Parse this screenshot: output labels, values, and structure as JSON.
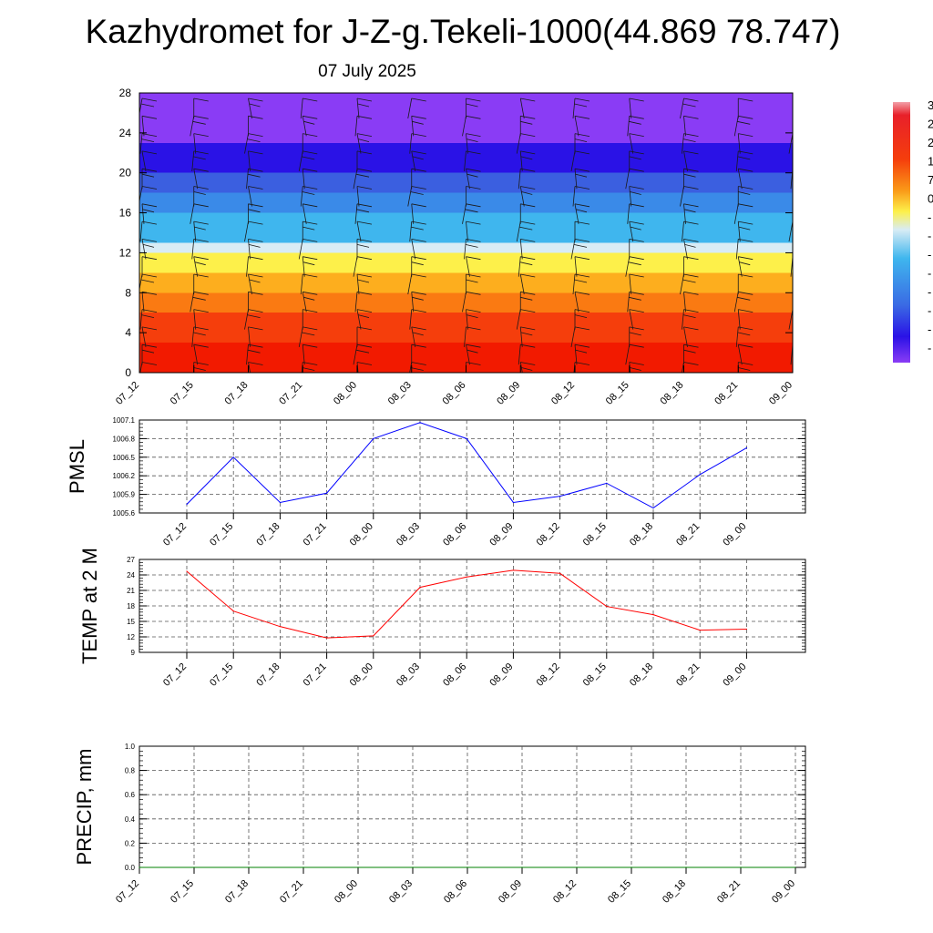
{
  "page": {
    "title": "Kazhydromet for J-Z-g.Tekeli-1000(44.869 78.747)",
    "subtitle": "07 July 2025"
  },
  "colorbar": {
    "labels": [
      "3",
      "2",
      "2",
      "1",
      "7",
      "0",
      "-",
      "-",
      "-",
      "-",
      "-",
      "-",
      "-",
      "-"
    ]
  },
  "chart_data": [
    {
      "type": "heatmap",
      "name": "cross-section",
      "categories": [
        "07_12",
        "07_15",
        "07_18",
        "07_21",
        "08_00",
        "08_03",
        "08_06",
        "08_09",
        "08_12",
        "08_15",
        "08_18",
        "08_21",
        "09_00"
      ],
      "y_ticks": [
        0,
        4,
        8,
        12,
        16,
        20,
        24,
        28
      ],
      "ylim": [
        0,
        28
      ],
      "color_bands": [
        {
          "from": 0,
          "to": 3,
          "color": "#f21a00"
        },
        {
          "from": 3,
          "to": 6,
          "color": "#f53e0c"
        },
        {
          "from": 6,
          "to": 8,
          "color": "#fa7a12"
        },
        {
          "from": 8,
          "to": 10,
          "color": "#fdae1e"
        },
        {
          "from": 10,
          "to": 12,
          "color": "#fdf04a"
        },
        {
          "from": 12,
          "to": 13,
          "color": "#d8ecf5"
        },
        {
          "from": 13,
          "to": 16,
          "color": "#3fb6ee"
        },
        {
          "from": 16,
          "to": 18,
          "color": "#3a8ae8"
        },
        {
          "from": 18,
          "to": 20,
          "color": "#3b5fe0"
        },
        {
          "from": 20,
          "to": 23,
          "color": "#2a12e6"
        },
        {
          "from": 23,
          "to": 28,
          "color": "#8a3cf5"
        }
      ],
      "wind_barbs": "present"
    },
    {
      "type": "line",
      "name": "pmsl",
      "ylabel": "PMSL",
      "categories": [
        "07_12",
        "07_15",
        "07_18",
        "07_21",
        "08_00",
        "08_03",
        "08_06",
        "08_09",
        "08_12",
        "08_15",
        "08_18",
        "08_21",
        "09_00"
      ],
      "values": [
        1005.74,
        1006.5,
        1005.77,
        1005.92,
        1006.8,
        1007.06,
        1006.8,
        1005.77,
        1005.87,
        1006.08,
        1005.68,
        1006.22,
        1006.65
      ],
      "ylim": [
        1005.6,
        1007.1
      ],
      "y_ticks": [
        "1005.6",
        "1005.9",
        "1006.2",
        "1006.5",
        "1006.8",
        "1007.1"
      ],
      "color": "#0000ff"
    },
    {
      "type": "line",
      "name": "temp",
      "ylabel": "TEMP at 2 M",
      "categories": [
        "07_12",
        "07_15",
        "07_18",
        "07_21",
        "08_00",
        "08_03",
        "08_06",
        "08_09",
        "08_12",
        "08_15",
        "08_18",
        "08_21",
        "09_00"
      ],
      "values": [
        24.7,
        17.0,
        14.0,
        11.8,
        12.2,
        21.6,
        23.6,
        24.9,
        24.3,
        17.9,
        16.3,
        13.3,
        13.5
      ],
      "ylim": [
        9,
        27
      ],
      "y_ticks": [
        "9",
        "12",
        "15",
        "18",
        "21",
        "24",
        "27"
      ],
      "color": "#ff0000"
    },
    {
      "type": "line",
      "name": "precip",
      "ylabel": "PRECIP, mm",
      "categories": [
        "07_12",
        "07_15",
        "07_18",
        "07_21",
        "08_00",
        "08_03",
        "08_06",
        "08_09",
        "08_12",
        "08_15",
        "08_18",
        "08_21",
        "09_00"
      ],
      "values": [
        0,
        0,
        0,
        0,
        0,
        0,
        0,
        0,
        0,
        0,
        0,
        0,
        0
      ],
      "ylim": [
        0,
        1
      ],
      "y_ticks": [
        "0.0",
        "0.2",
        "0.4",
        "0.6",
        "0.8",
        "1.0"
      ],
      "color": "#008000"
    }
  ]
}
